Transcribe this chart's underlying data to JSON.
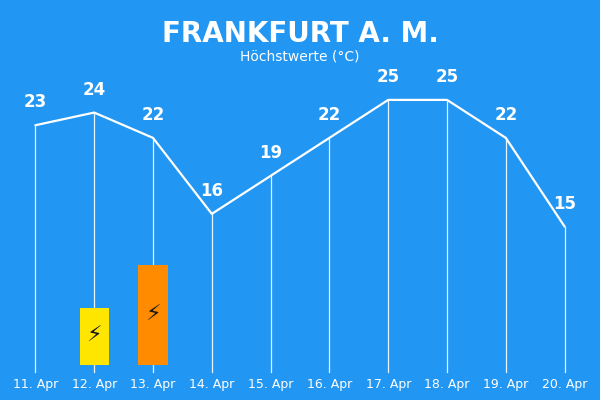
{
  "title": "FRANKFURT A. M.",
  "subtitle": "Höchstwerte (°C)",
  "background_color": "#2196F3",
  "line_color": "white",
  "text_color": "white",
  "dates": [
    "11. Apr",
    "12. Apr",
    "13. Apr",
    "14. Apr",
    "15. Apr",
    "16. Apr",
    "17. Apr",
    "18. Apr",
    "19. Apr",
    "20. Apr"
  ],
  "temps": [
    23,
    24,
    22,
    16,
    19,
    22,
    25,
    25,
    22,
    15
  ],
  "warn_colors": {
    "12. Apr": "#FFE600",
    "13. Apr": "#FF8C00"
  },
  "warn_bar_bottom": 0.08,
  "warn_bar_heights": {
    "12. Apr": 0.13,
    "13. Apr": 0.2
  },
  "bar_width": 0.5,
  "temp_label_fontsize": 12,
  "date_label_fontsize": 9,
  "title_fontsize": 20,
  "subtitle_fontsize": 10
}
